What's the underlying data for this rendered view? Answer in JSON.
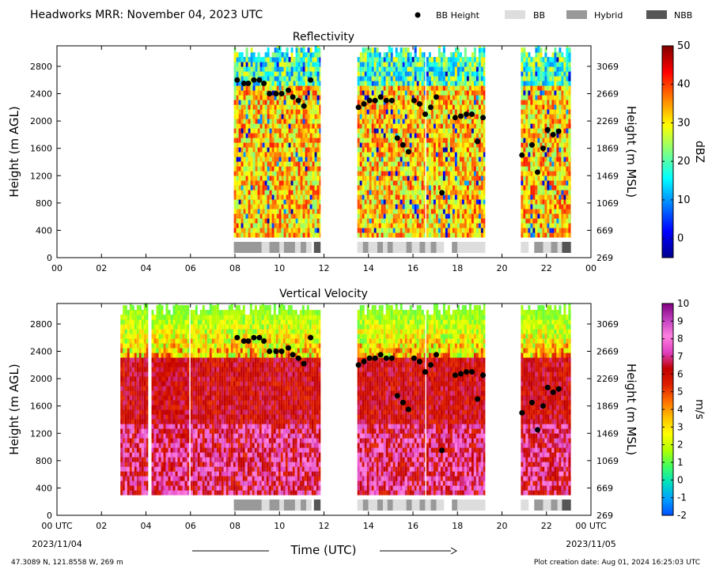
{
  "title": "Headworks MRR:  November 04, 2023 UTC",
  "legend": {
    "placement": "top-right",
    "items": [
      {
        "label": "BB Height",
        "kind": "dot",
        "color": "#000000"
      },
      {
        "label": "BB",
        "kind": "box",
        "color": "#dddddd"
      },
      {
        "label": "Hybrid",
        "kind": "box",
        "color": "#999999"
      },
      {
        "label": "NBB",
        "kind": "box",
        "color": "#555555"
      }
    ]
  },
  "footer": {
    "coords": "47.3089 N, 121.8558 W, 269 m",
    "creation": "Plot creation date: Aug 01, 2024 16:25:03 UTC",
    "xlabel": "Time (UTC)",
    "start_date": "2023/11/04",
    "end_date": "2023/11/05"
  },
  "chart_data": [
    {
      "type": "heatmap",
      "title": "Reflectivity",
      "xlabel": "",
      "ylabel": "Height (m AGL)",
      "y2label": "Height (m MSL)",
      "xlim": [
        0,
        24
      ],
      "ylim": [
        0,
        3100
      ],
      "xticks": [
        "00",
        "02",
        "04",
        "06",
        "08",
        "10",
        "12",
        "14",
        "16",
        "18",
        "20",
        "22",
        "00"
      ],
      "yticks": [
        0,
        400,
        800,
        1200,
        1600,
        2000,
        2400,
        2800
      ],
      "y2ticks": [
        269,
        669,
        1069,
        1469,
        1869,
        2269,
        2669,
        3069
      ],
      "grid": false,
      "colorbar": {
        "label": "dBZ",
        "min": -5,
        "max": 50,
        "ticks": [
          0,
          10,
          20,
          30,
          40,
          50
        ],
        "colors": [
          "#00008f",
          "#0000ff",
          "#0080ff",
          "#00ffff",
          "#80ff80",
          "#ffff00",
          "#ff8000",
          "#ff0000",
          "#800000"
        ]
      },
      "data_segments_hours": [
        [
          7.95,
          11.85
        ],
        [
          13.5,
          16.55
        ],
        [
          16.6,
          19.25
        ],
        [
          20.85,
          23.1
        ]
      ],
      "bb_classification": [
        {
          "start": 7.95,
          "end": 9.2,
          "class": "Hybrid"
        },
        {
          "start": 9.2,
          "end": 9.55,
          "class": "BB"
        },
        {
          "start": 9.55,
          "end": 10.0,
          "class": "Hybrid"
        },
        {
          "start": 10.0,
          "end": 10.2,
          "class": "BB"
        },
        {
          "start": 10.2,
          "end": 10.7,
          "class": "Hybrid"
        },
        {
          "start": 10.7,
          "end": 10.95,
          "class": "BB"
        },
        {
          "start": 10.95,
          "end": 11.2,
          "class": "Hybrid"
        },
        {
          "start": 11.2,
          "end": 11.45,
          "class": "BB"
        },
        {
          "start": 11.55,
          "end": 11.85,
          "class": "NBB"
        },
        {
          "start": 13.5,
          "end": 13.75,
          "class": "BB"
        },
        {
          "start": 13.75,
          "end": 14.0,
          "class": "Hybrid"
        },
        {
          "start": 14.0,
          "end": 14.4,
          "class": "BB"
        },
        {
          "start": 14.4,
          "end": 14.65,
          "class": "Hybrid"
        },
        {
          "start": 14.65,
          "end": 14.85,
          "class": "BB"
        },
        {
          "start": 14.85,
          "end": 15.1,
          "class": "Hybrid"
        },
        {
          "start": 15.1,
          "end": 15.7,
          "class": "BB"
        },
        {
          "start": 15.7,
          "end": 15.95,
          "class": "Hybrid"
        },
        {
          "start": 15.95,
          "end": 16.3,
          "class": "BB"
        },
        {
          "start": 16.3,
          "end": 16.55,
          "class": "Hybrid"
        },
        {
          "start": 16.55,
          "end": 16.8,
          "class": "BB"
        },
        {
          "start": 16.8,
          "end": 17.05,
          "class": "Hybrid"
        },
        {
          "start": 17.05,
          "end": 17.4,
          "class": "BB"
        },
        {
          "start": 17.75,
          "end": 18.0,
          "class": "Hybrid"
        },
        {
          "start": 18.0,
          "end": 19.25,
          "class": "BB"
        },
        {
          "start": 20.85,
          "end": 21.2,
          "class": "BB"
        },
        {
          "start": 21.45,
          "end": 21.6,
          "class": "Hybrid"
        },
        {
          "start": 21.6,
          "end": 21.85,
          "class": "Hybrid"
        },
        {
          "start": 21.85,
          "end": 22.2,
          "class": "BB"
        },
        {
          "start": 22.2,
          "end": 22.5,
          "class": "Hybrid"
        },
        {
          "start": 22.5,
          "end": 22.7,
          "class": "BB"
        },
        {
          "start": 22.7,
          "end": 23.1,
          "class": "NBB"
        }
      ],
      "bb_height": {
        "x": [
          8.1,
          8.4,
          8.6,
          8.85,
          9.1,
          9.3,
          9.55,
          9.85,
          10.1,
          10.4,
          10.6,
          10.85,
          11.1,
          11.4,
          13.55,
          13.8,
          14.05,
          14.3,
          14.55,
          14.8,
          15.05,
          15.3,
          15.55,
          15.8,
          16.05,
          16.3,
          16.55,
          16.8,
          17.05,
          17.3,
          17.9,
          18.15,
          18.4,
          18.65,
          18.9,
          19.15,
          20.9,
          21.35,
          21.6,
          21.85,
          22.05,
          22.3,
          22.55
        ],
        "y": [
          2600,
          2550,
          2550,
          2600,
          2600,
          2550,
          2400,
          2400,
          2400,
          2450,
          2350,
          2300,
          2220,
          2600,
          2200,
          2250,
          2300,
          2300,
          2350,
          2300,
          2300,
          1750,
          1650,
          1550,
          2300,
          2250,
          2100,
          2200,
          2350,
          950,
          2050,
          2070,
          2100,
          2100,
          1700,
          2050,
          1500,
          1650,
          1250,
          1600,
          1870,
          1800,
          1850
        ]
      }
    },
    {
      "type": "heatmap",
      "title": "Vertical Velocity",
      "xlabel": "Time (UTC)",
      "ylabel": "Height (m AGL)",
      "y2label": "Height (m MSL)",
      "xlim": [
        0,
        24
      ],
      "ylim": [
        0,
        3100
      ],
      "xticks": [
        "00 UTC",
        "02",
        "04",
        "06",
        "08",
        "10",
        "12",
        "14",
        "16",
        "18",
        "20",
        "22",
        "00 UTC"
      ],
      "yticks": [
        0,
        400,
        800,
        1200,
        1600,
        2000,
        2400,
        2800
      ],
      "y2ticks": [
        269,
        669,
        1069,
        1469,
        1869,
        2269,
        2669,
        3069
      ],
      "grid": false,
      "colorbar": {
        "label": "m/s",
        "min": -2,
        "max": 10,
        "ticks": [
          -2,
          -1,
          0,
          1,
          2,
          3,
          4,
          5,
          6,
          7,
          8,
          9,
          10
        ],
        "colors": [
          "#0050ff",
          "#00a0ff",
          "#00e0c0",
          "#40ff60",
          "#b0ff00",
          "#ffff00",
          "#ffc000",
          "#ff7000",
          "#e02000",
          "#c00000",
          "#e040c0",
          "#ff80e0",
          "#c040c0",
          "#800080"
        ]
      },
      "data_segments_hours": [
        [
          2.85,
          3.05
        ],
        [
          3.05,
          4.1
        ],
        [
          4.25,
          5.95
        ],
        [
          6.0,
          11.85
        ],
        [
          13.5,
          16.55
        ],
        [
          16.6,
          19.25
        ],
        [
          20.85,
          23.1
        ]
      ],
      "bb_classification_ref": "same as Reflectivity",
      "bb_height_ref": "same as Reflectivity"
    }
  ]
}
